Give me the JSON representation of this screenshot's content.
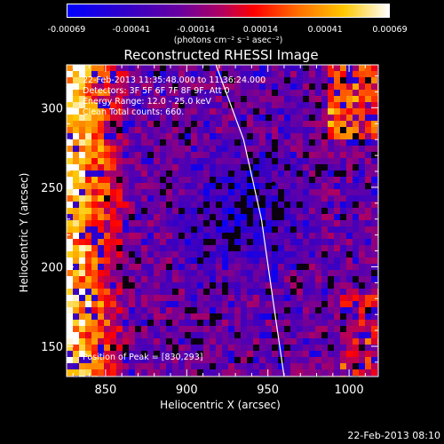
{
  "chart_data": {
    "type": "heatmap",
    "title": "Reconstructed RHESSI Image",
    "xlabel": "Heliocentric X (arcsec)",
    "ylabel": "Heliocentric Y (arcsec)",
    "xlim": [
      826,
      1018
    ],
    "ylim": [
      131,
      327
    ],
    "xticks": [
      850,
      900,
      950,
      1000
    ],
    "yticks": [
      150,
      200,
      250,
      300
    ],
    "colorbar": {
      "unit_label": "(photons cm⁻² s⁻¹ asec⁻²)",
      "ticks": [
        "-0.00069",
        "-0.00041",
        "-0.00014",
        "0.00014",
        "0.00041",
        "0.00069"
      ],
      "range": [
        -0.00069,
        0.00069
      ]
    },
    "annotations": {
      "time": "22-Feb-2013 11:35:48.000 to 11:36:24.000",
      "detectors": "Detectors: 3F 5F 6F 7F 8F 9F, Att 0",
      "energy": "Energy Range: 12.0 - 25.0 keV",
      "method": "Clean     Total counts: 660.",
      "peak": "Position of Peak = [830,293]"
    },
    "peak_position": [
      830,
      293
    ],
    "limb_curve": [
      [
        918,
        327
      ],
      [
        935,
        280
      ],
      [
        946,
        230
      ],
      [
        953,
        180
      ],
      [
        960,
        131
      ]
    ]
  },
  "footer": {
    "timestamp": "22-Feb-2013 08:10"
  }
}
